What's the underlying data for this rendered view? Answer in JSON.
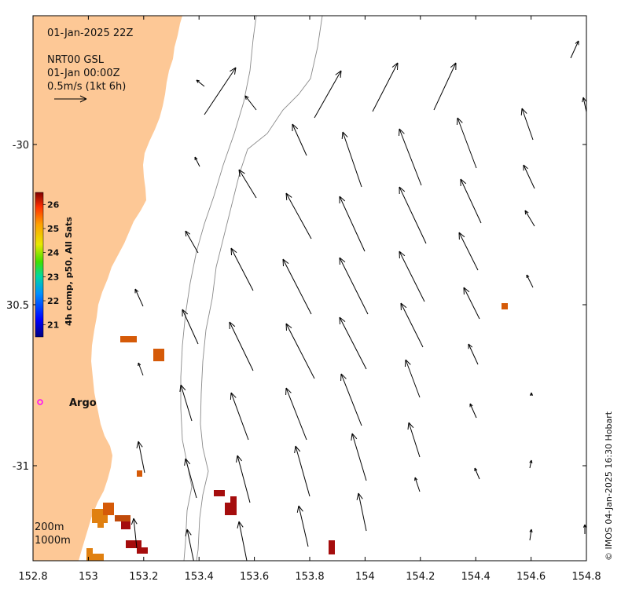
{
  "map": {
    "timestamp": "01-Jan-2025 22Z",
    "product_line1": "NRT00 GSL",
    "product_line2": "01-Jan 00:00Z",
    "scale_label": "0.5m/s (1kt 6h)",
    "argo_label": "Argo",
    "depth_label_200": "200m",
    "depth_label_1000": "1000m",
    "credit": "© IMOS 04-Jan-2025 16:30 Hobart",
    "x_ticks": [
      "152.8",
      "153",
      "153.2",
      "153.4",
      "153.6",
      "153.8",
      "154",
      "154.2",
      "154.4",
      "154.6",
      "154.8"
    ],
    "y_ticks": [
      "-30",
      "30.5",
      "-31"
    ],
    "colorbar": {
      "label": "4h comp, p50, All Sats",
      "ticks": [
        "21",
        "22",
        "23",
        "24",
        "25",
        "26"
      ],
      "range": [
        20.5,
        26.5
      ]
    },
    "colors": {
      "land": "#fdc896",
      "argo_marker": "#ff00ff",
      "sst_hot": "#a50d0d",
      "sst_warm": "#d55a08",
      "sst_mid": "#e08010"
    }
  }
}
